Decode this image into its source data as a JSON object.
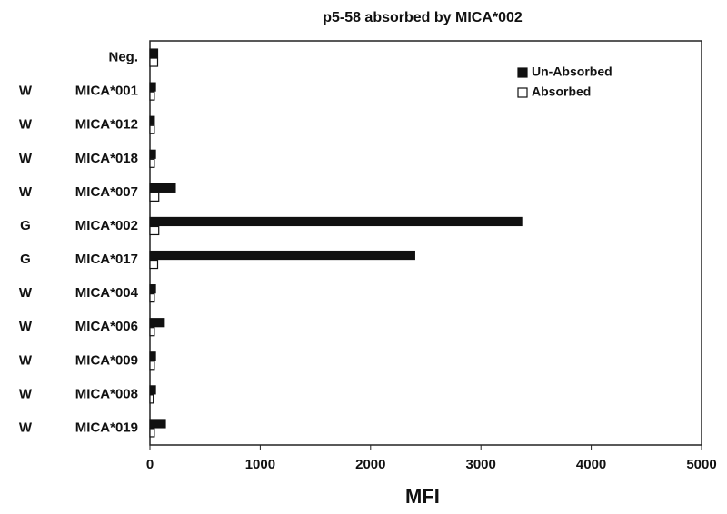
{
  "chart_data": {
    "type": "barh",
    "title": "p5-58   absorbed by MICA*002",
    "x_label": "MFI",
    "categories": [
      "Neg.",
      "MICA*001",
      "MICA*012",
      "MICA*018",
      "MICA*007",
      "MICA*002",
      "MICA*017",
      "MICA*004",
      "MICA*006",
      "MICA*009",
      "MICA*008",
      "MICA*019"
    ],
    "groups": [
      null,
      "W",
      "W",
      "W",
      "W",
      "G",
      "G",
      "W",
      "W",
      "W",
      "W",
      "W"
    ],
    "series": [
      {
        "name": "Un-Absorbed",
        "color": "#111111",
        "values": [
          70,
          50,
          40,
          50,
          230,
          3370,
          2400,
          50,
          130,
          50,
          50,
          140
        ]
      },
      {
        "name": "Absorbed",
        "color": "#ffffff",
        "values": [
          70,
          40,
          40,
          40,
          80,
          80,
          70,
          40,
          40,
          40,
          30,
          40
        ]
      }
    ],
    "xlim": [
      0,
      5000
    ],
    "xticks": [
      0,
      1000,
      2000,
      3000,
      4000,
      5000
    ],
    "legend": "upper right",
    "grid": false
  }
}
